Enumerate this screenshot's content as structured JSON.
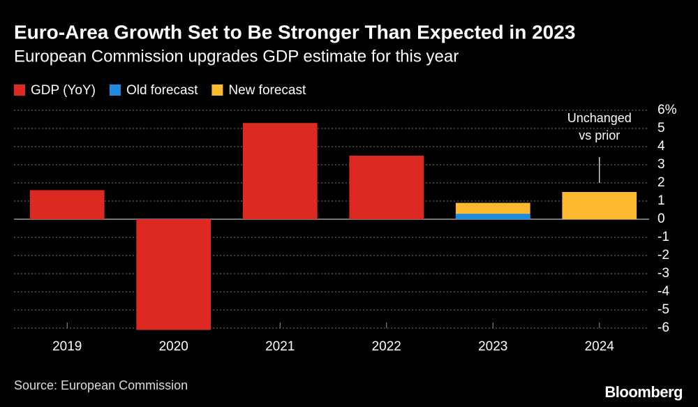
{
  "chart_data": {
    "type": "bar",
    "title": "Euro-Area Growth Set to Be Stronger Than Expected in 2023",
    "subtitle": "European Commission upgrades GDP estimate for this year",
    "source": "Source: European Commission",
    "brand": "Bloomberg",
    "annotation": {
      "category": "2024",
      "lines": [
        "Unchanged",
        "vs prior"
      ]
    },
    "categories": [
      "2019",
      "2020",
      "2021",
      "2022",
      "2023",
      "2024"
    ],
    "series": [
      {
        "name": "GDP (YoY)",
        "color": "#dc2a22",
        "values": [
          1.6,
          -6.1,
          5.3,
          3.5,
          null,
          null
        ]
      },
      {
        "name": "Old forecast",
        "color": "#1e8de0",
        "values": [
          null,
          null,
          null,
          null,
          0.3,
          null
        ]
      },
      {
        "name": "New forecast",
        "color": "#fdb930",
        "values": [
          null,
          null,
          null,
          null,
          0.9,
          1.5
        ]
      }
    ],
    "ylim": [
      -6,
      6
    ],
    "yticks": [
      {
        "value": 6,
        "label": "6%"
      },
      5,
      4,
      3,
      2,
      1,
      0,
      -1,
      -2,
      -3,
      -4,
      -5,
      -6
    ],
    "grid": true
  }
}
